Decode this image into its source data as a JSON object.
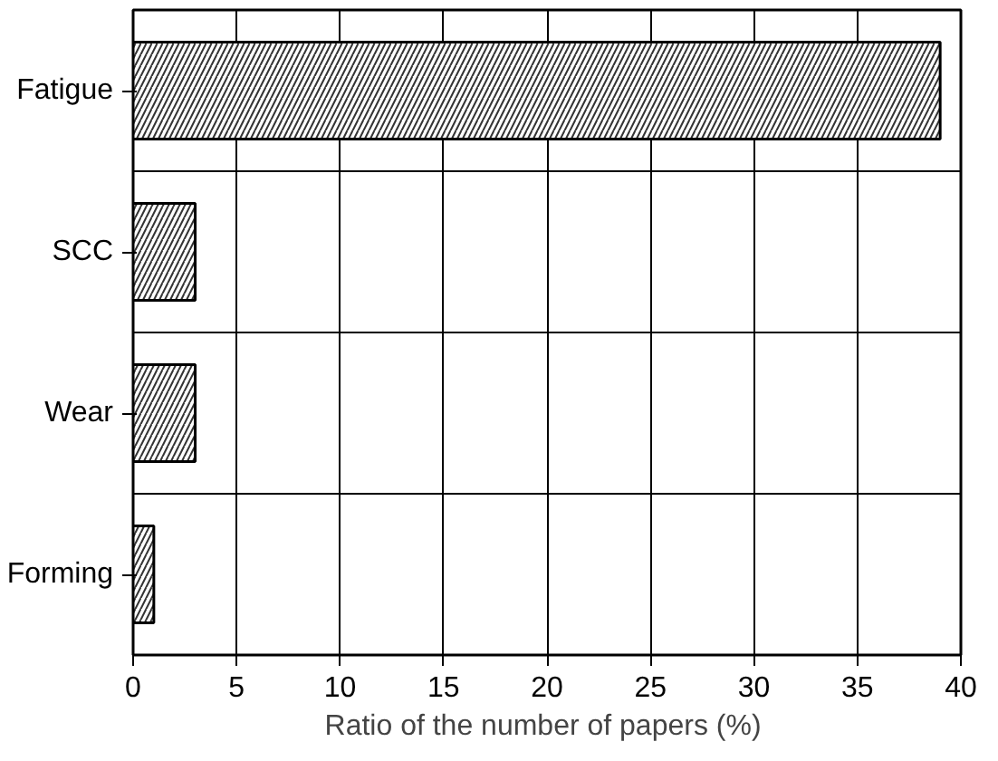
{
  "chart_data": {
    "type": "bar",
    "orientation": "horizontal",
    "categories": [
      "Fatigue",
      "SCC",
      "Wear",
      "Forming"
    ],
    "values": [
      39,
      3,
      3,
      1
    ],
    "color": "#ffffff",
    "xlim": [
      0,
      40
    ],
    "xticks": [
      0,
      5,
      10,
      15,
      20,
      25,
      30,
      35,
      40
    ],
    "xlabel": "Ratio of the number of papers  (%)",
    "grid": true
  }
}
